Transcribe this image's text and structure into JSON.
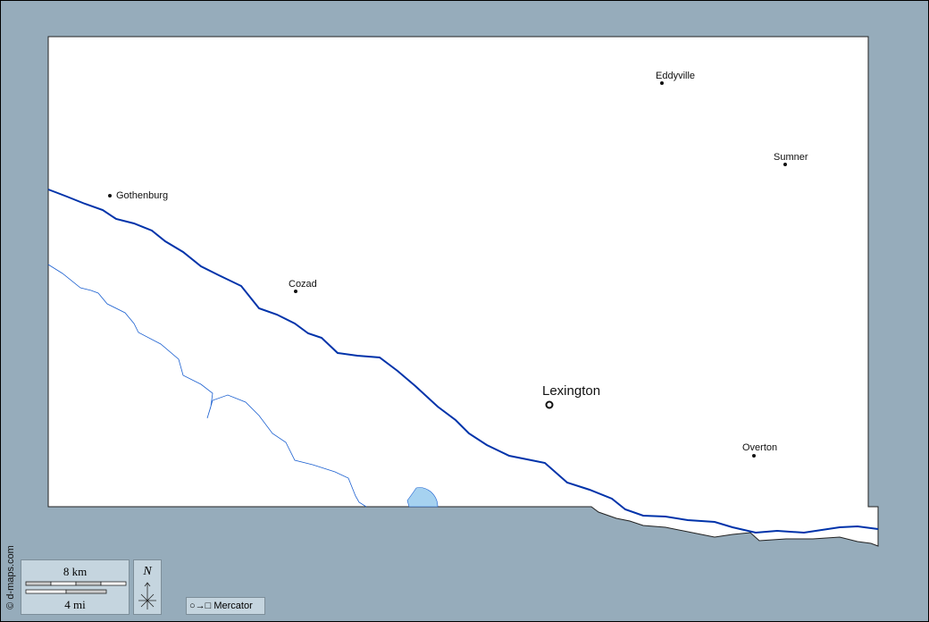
{
  "map": {
    "colors": {
      "background": "#96acbb",
      "land": "#ffffff",
      "river": "#0033aa",
      "stream": "#1a5fd0",
      "lake": "#a6d2f0"
    },
    "cities": [
      {
        "name": "Eddyville",
        "type": "town"
      },
      {
        "name": "Sumner",
        "type": "town"
      },
      {
        "name": "Gothenburg",
        "type": "town"
      },
      {
        "name": "Cozad",
        "type": "town"
      },
      {
        "name": "Lexington",
        "type": "county-seat"
      },
      {
        "name": "Overton",
        "type": "town"
      }
    ]
  },
  "scale": {
    "km_label": "8 km",
    "mi_label": "4 mi"
  },
  "north": {
    "label": "N"
  },
  "projection": {
    "symbol": "○→□",
    "label": "Mercator"
  },
  "credit": "© d-maps.com"
}
